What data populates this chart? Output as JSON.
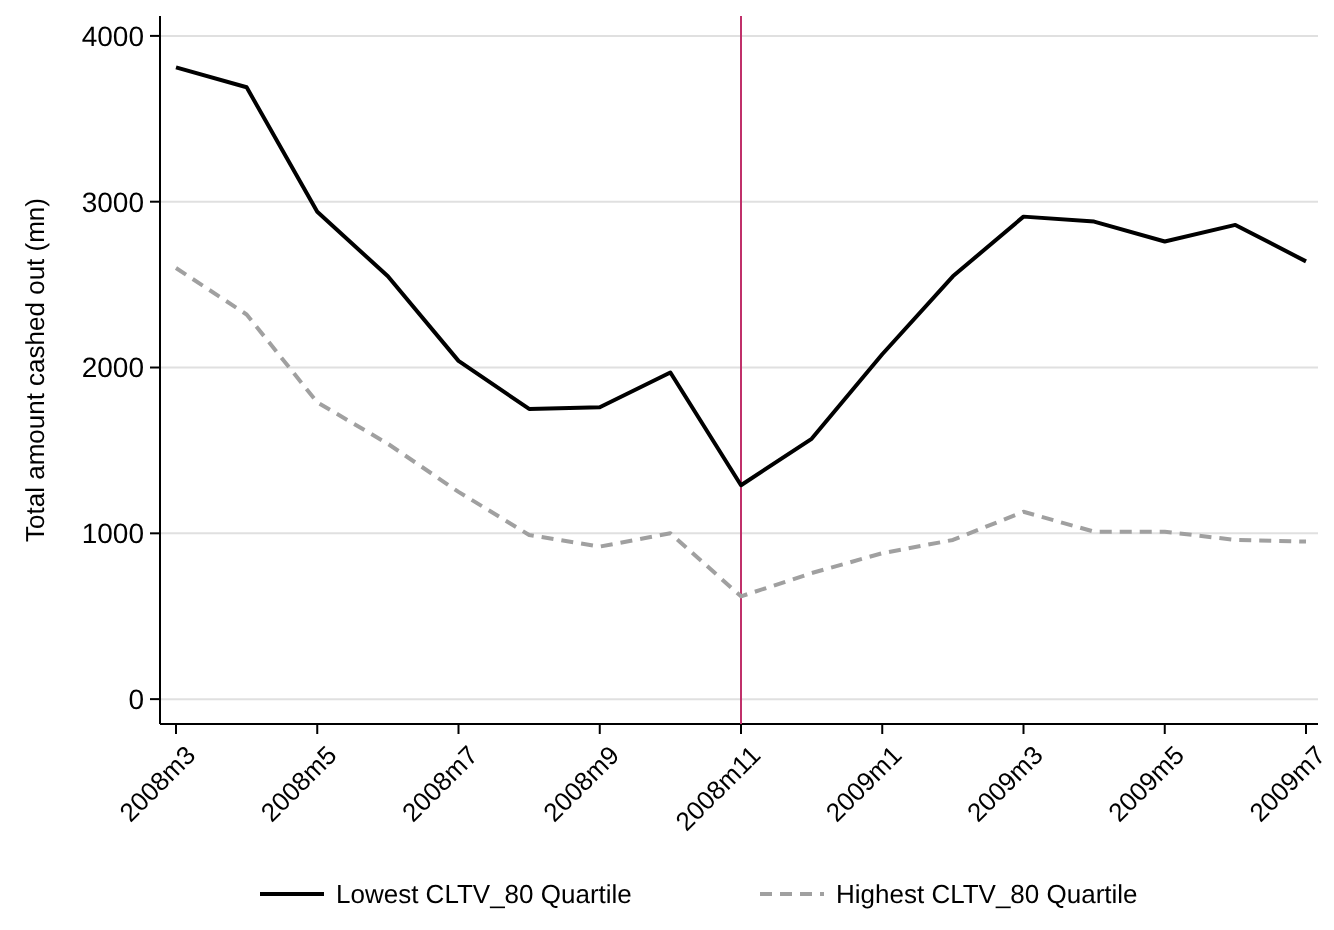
{
  "chart_data": {
    "type": "line",
    "ylabel": "Total amount cashed out (mn)",
    "categories": [
      "2008m3",
      null,
      "2008m5",
      null,
      "2008m7",
      null,
      "2008m9",
      null,
      "2008m11",
      null,
      "2009m1",
      null,
      "2009m3",
      null,
      "2009m5",
      null,
      "2009m7"
    ],
    "series": [
      {
        "name": "Lowest CLTV_80 Quartile",
        "color": "#000000",
        "line_style": "solid",
        "values": [
          3810,
          3690,
          2940,
          2550,
          2040,
          1750,
          1760,
          1970,
          1290,
          1570,
          2080,
          2550,
          2910,
          2880,
          2760,
          2860,
          2640
        ]
      },
      {
        "name": "Highest CLTV_80 Quartile",
        "color": "#a0a0a0",
        "line_style": "dashed",
        "values": [
          2600,
          2320,
          1790,
          1540,
          1250,
          990,
          920,
          1000,
          620,
          760,
          880,
          960,
          1130,
          1010,
          1010,
          960,
          950
        ]
      }
    ],
    "ylim": [
      -150,
      4120
    ],
    "yticks": [
      0,
      1000,
      2000,
      3000,
      4000
    ],
    "grid": "y",
    "legend": "bottom",
    "marker": "none",
    "ref_lines": [
      {
        "axis": "x",
        "value": "2008m11",
        "color": "#c0306a"
      }
    ]
  }
}
